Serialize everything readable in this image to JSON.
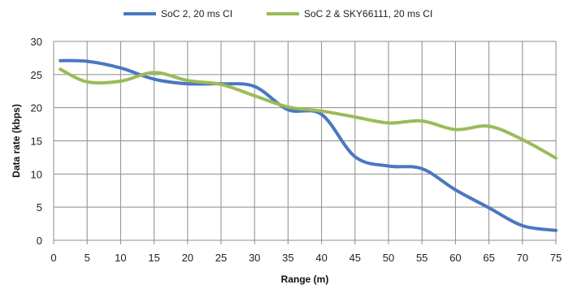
{
  "chart_data": {
    "type": "line",
    "xlabel": "Range (m)",
    "ylabel": "Data rate (kbps)",
    "xlim": [
      0,
      75
    ],
    "ylim": [
      0,
      30
    ],
    "xticks": [
      0,
      5,
      10,
      15,
      20,
      25,
      30,
      35,
      40,
      45,
      50,
      55,
      60,
      65,
      70,
      75
    ],
    "yticks": [
      0,
      5,
      10,
      15,
      20,
      25,
      30
    ],
    "grid": "vertical-and-horizontal",
    "legend_position": "top",
    "series": [
      {
        "name": "SoC 2, 20 ms CI",
        "color": "#4a78c0",
        "x": [
          1,
          5,
          10,
          15,
          20,
          25,
          30,
          35,
          40,
          45,
          50,
          55,
          60,
          65,
          70,
          75
        ],
        "y": [
          27.1,
          27.0,
          26.0,
          24.3,
          23.6,
          23.6,
          23.2,
          19.7,
          19.0,
          12.6,
          11.2,
          10.8,
          7.6,
          4.9,
          2.2,
          1.5
        ]
      },
      {
        "name": "SoC 2 & SKY66111, 20 ms CI",
        "color": "#9bbb59",
        "x": [
          1,
          5,
          10,
          15,
          20,
          25,
          30,
          35,
          40,
          45,
          50,
          55,
          60,
          65,
          70,
          75
        ],
        "y": [
          25.8,
          23.9,
          24.0,
          25.3,
          24.1,
          23.5,
          21.8,
          20.1,
          19.5,
          18.6,
          17.7,
          18.0,
          16.7,
          17.2,
          15.2,
          12.4
        ]
      }
    ]
  }
}
